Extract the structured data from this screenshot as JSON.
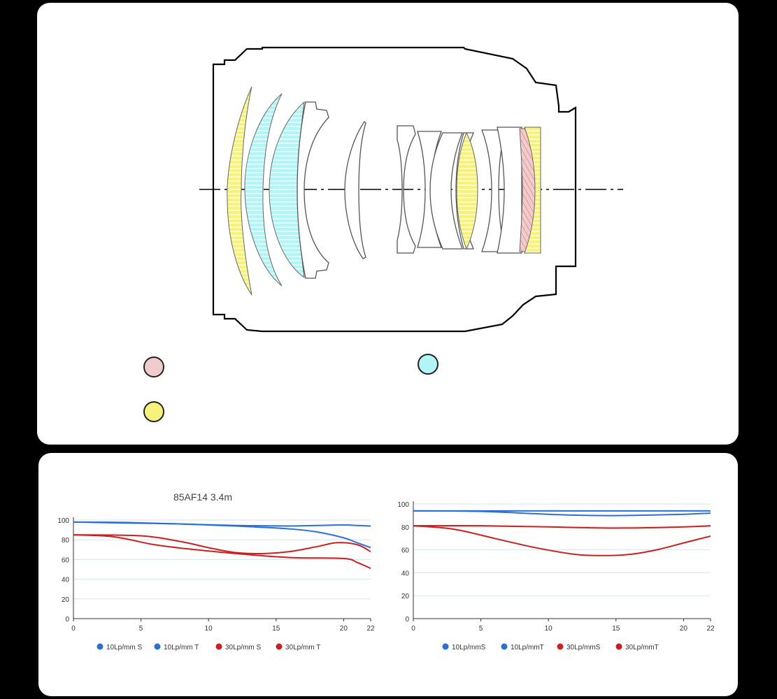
{
  "colors": {
    "low_dispersion": "#f2cccc",
    "aspherical": "#b3f5f7",
    "high_refraction": "#f7f27a",
    "series_blue": "#2a6fd8",
    "series_red": "#cc1f1f",
    "background": "#000000",
    "panel": "#ffffff"
  },
  "diagram": {
    "legend": [
      {
        "color_key": "low_dispersion",
        "label": ""
      },
      {
        "color_key": "aspherical",
        "label": ""
      },
      {
        "color_key": "high_refraction",
        "label": ""
      }
    ]
  },
  "chart_data": [
    {
      "type": "line",
      "title": "85AF14 3.4m",
      "xlim": [
        0,
        22
      ],
      "ylim": [
        0,
        100
      ],
      "x_ticks": [
        0,
        5,
        10,
        15,
        20,
        22
      ],
      "y_ticks": [
        0,
        20,
        40,
        60,
        80,
        100
      ],
      "grid": true,
      "legend_position": "bottom",
      "series": [
        {
          "name": "10Lp/mm S",
          "color": "#2a6fd8",
          "points": [
            [
              0,
              98
            ],
            [
              4,
              97.5
            ],
            [
              8,
              96
            ],
            [
              12,
              94.5
            ],
            [
              16,
              94
            ],
            [
              18,
              94.5
            ],
            [
              20,
              95
            ],
            [
              21,
              94.5
            ],
            [
              22,
              94
            ]
          ]
        },
        {
          "name": "10Lp/mm T",
          "color": "#2a6fd8",
          "points": [
            [
              0,
              98
            ],
            [
              4,
              97
            ],
            [
              8,
              96
            ],
            [
              12,
              94
            ],
            [
              16,
              91
            ],
            [
              18,
              88
            ],
            [
              20,
              82
            ],
            [
              21,
              77
            ],
            [
              22,
              72
            ]
          ]
        },
        {
          "name": "30Lp/mm S",
          "color": "#cc1f1f",
          "points": [
            [
              0,
              85
            ],
            [
              5,
              84
            ],
            [
              8,
              78
            ],
            [
              10,
              72
            ],
            [
              12,
              67
            ],
            [
              14,
              66
            ],
            [
              16,
              68
            ],
            [
              18,
              73
            ],
            [
              19.5,
              77
            ],
            [
              21,
              75
            ],
            [
              22,
              68
            ]
          ]
        },
        {
          "name": "30Lp/mm T",
          "color": "#cc1f1f",
          "points": [
            [
              0,
              85
            ],
            [
              3,
              83
            ],
            [
              6,
              75
            ],
            [
              9,
              70
            ],
            [
              12,
              66
            ],
            [
              16,
              62
            ],
            [
              20,
              61
            ],
            [
              21,
              57
            ],
            [
              22,
              51
            ]
          ]
        }
      ]
    },
    {
      "type": "line",
      "title": "",
      "xlim": [
        0,
        22
      ],
      "ylim": [
        0,
        100
      ],
      "x_ticks": [
        0,
        5,
        10,
        15,
        20,
        22
      ],
      "y_ticks": [
        0,
        20,
        40,
        60,
        80,
        100
      ],
      "grid": true,
      "legend_position": "bottom",
      "series": [
        {
          "name": "10Lp/mmS",
          "color": "#2a6fd8",
          "points": [
            [
              0,
              94
            ],
            [
              5,
              94
            ],
            [
              10,
              94
            ],
            [
              15,
              94
            ],
            [
              20,
              94
            ],
            [
              22,
              94
            ]
          ]
        },
        {
          "name": "10Lp/mmT",
          "color": "#2a6fd8",
          "points": [
            [
              0,
              94
            ],
            [
              5,
              93.5
            ],
            [
              10,
              91
            ],
            [
              13,
              90
            ],
            [
              16,
              90
            ],
            [
              20,
              91
            ],
            [
              22,
              92
            ]
          ]
        },
        {
          "name": "30Lp/mmS",
          "color": "#cc1f1f",
          "points": [
            [
              0,
              81
            ],
            [
              5,
              81
            ],
            [
              10,
              80
            ],
            [
              15,
              79
            ],
            [
              20,
              80
            ],
            [
              22,
              81
            ]
          ]
        },
        {
          "name": "30Lp/mmT",
          "color": "#cc1f1f",
          "points": [
            [
              0,
              81
            ],
            [
              3,
              78
            ],
            [
              6,
              70
            ],
            [
              9,
              62
            ],
            [
              12,
              56
            ],
            [
              14,
              55
            ],
            [
              16,
              56
            ],
            [
              18,
              60
            ],
            [
              20,
              66
            ],
            [
              22,
              72
            ]
          ]
        }
      ]
    }
  ]
}
